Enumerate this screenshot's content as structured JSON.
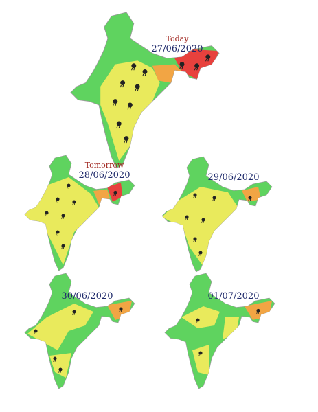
{
  "maps": [
    {
      "label": "Today",
      "date": "27/06/2020"
    },
    {
      "label": "Tomorrow",
      "date": "28/06/2020"
    },
    {
      "date": "29/06/2020"
    },
    {
      "date": "30/06/2020"
    },
    {
      "date": "01/07/2020"
    }
  ]
}
